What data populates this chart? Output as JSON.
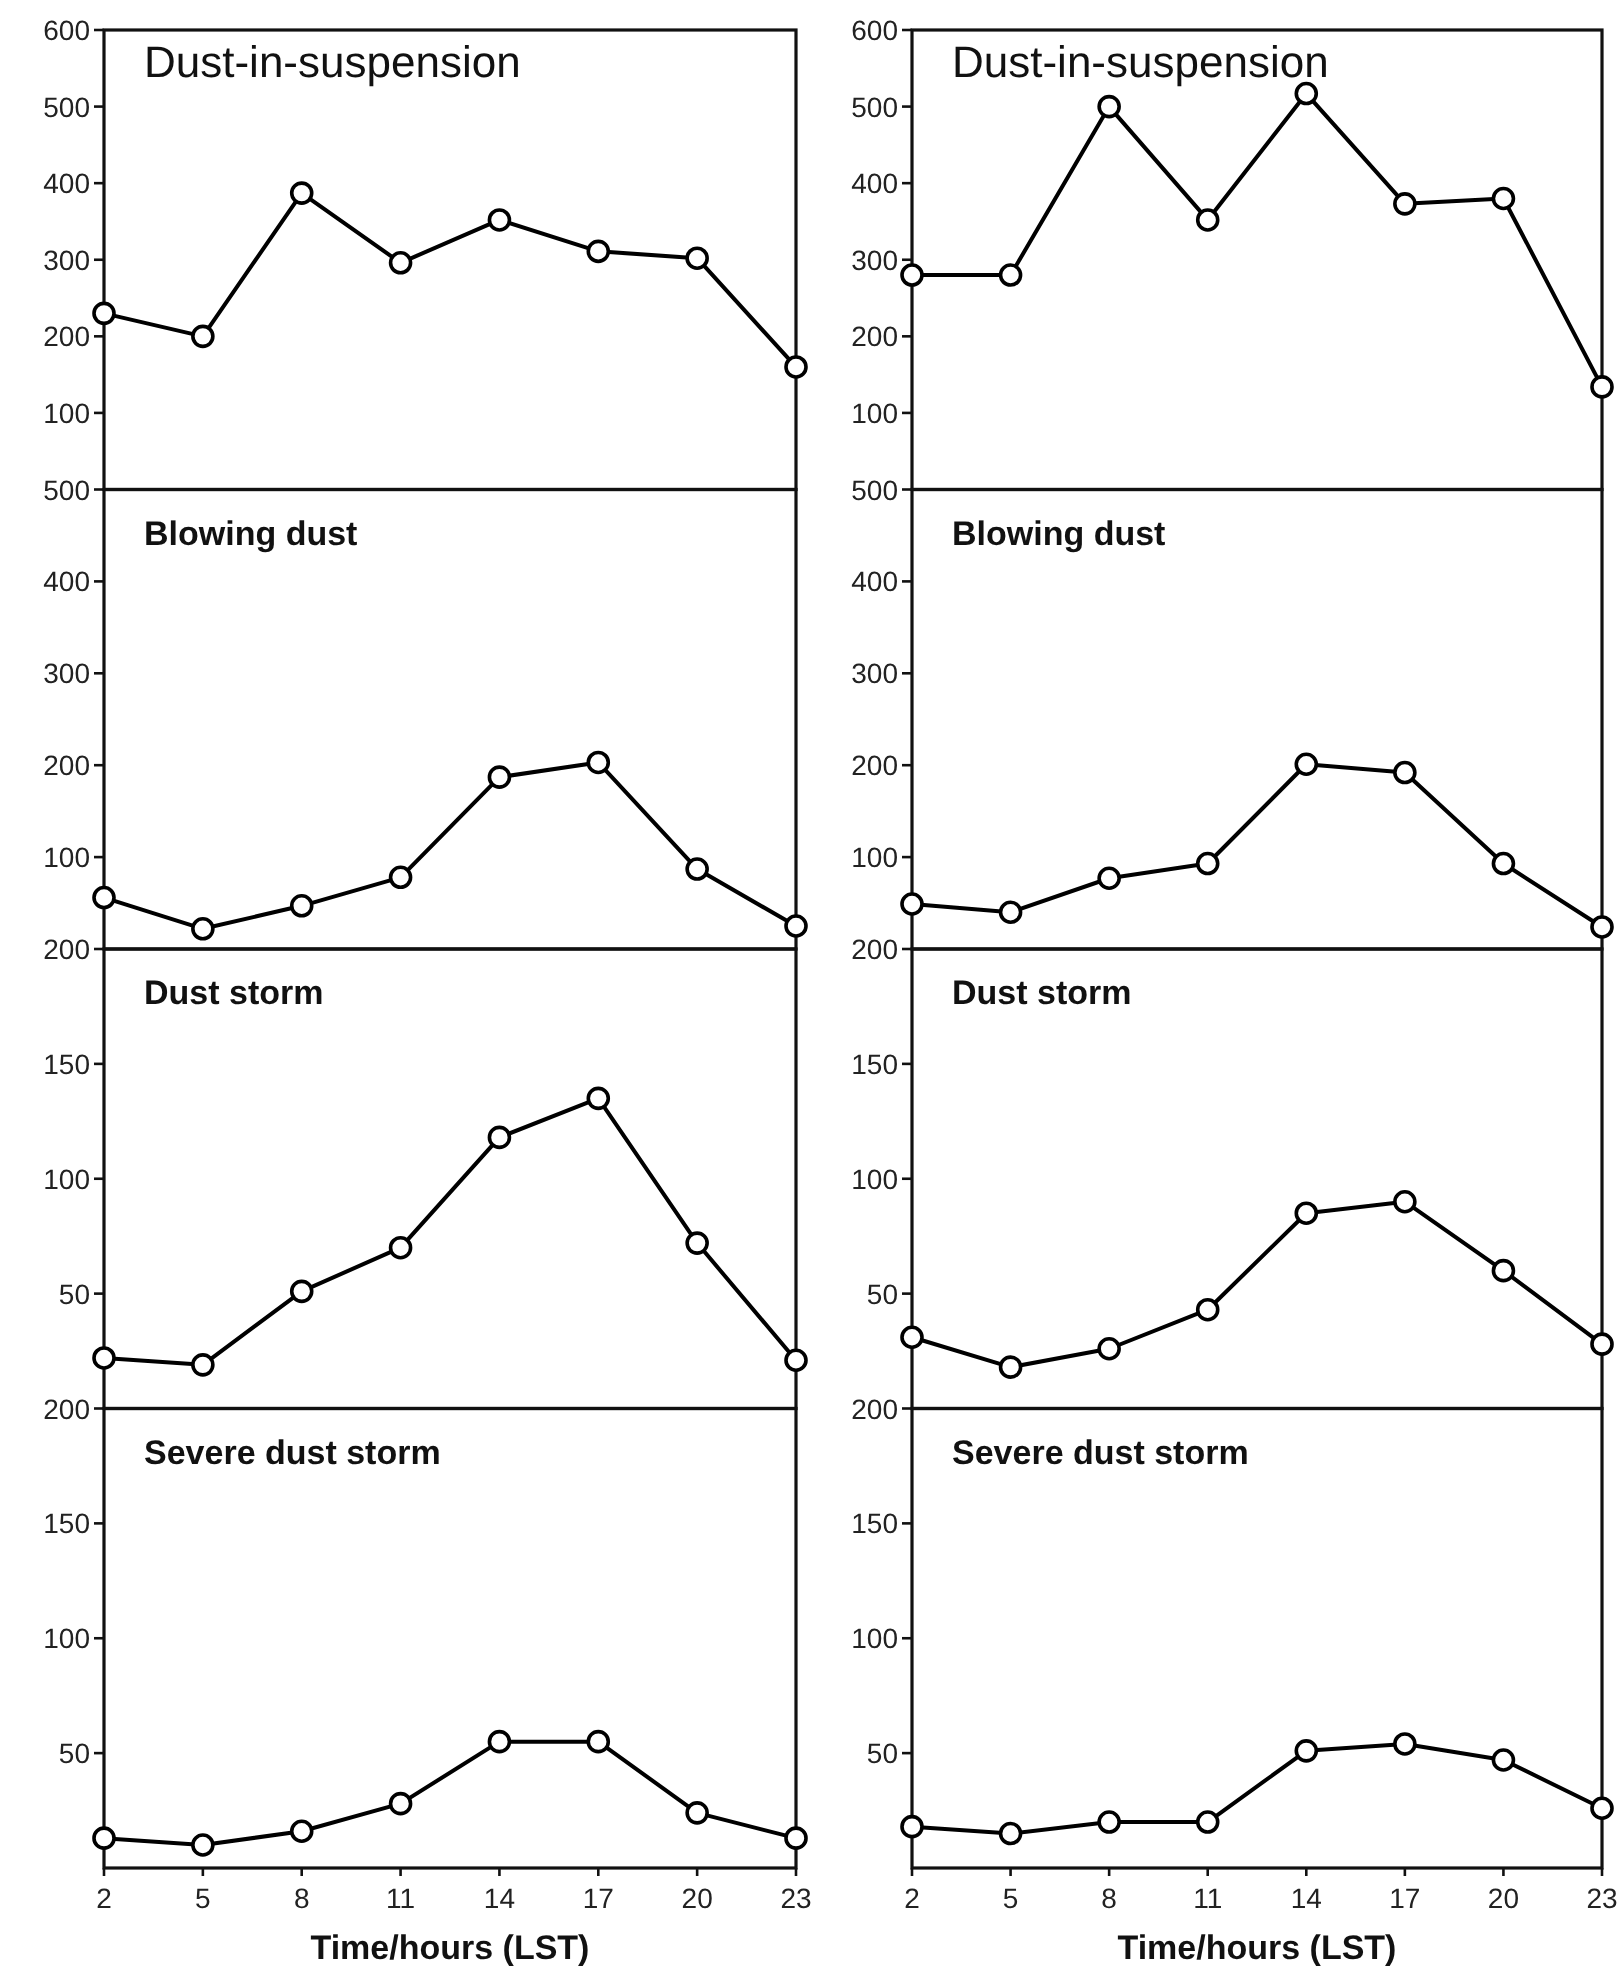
{
  "chart_data": [
    {
      "type": "line",
      "title": "Dust-in-suspension",
      "x": [
        2,
        5,
        8,
        11,
        14,
        17,
        20,
        23
      ],
      "values": [
        230,
        200,
        387,
        296,
        352,
        311,
        302,
        160
      ],
      "color": "#000000",
      "marker": "circle",
      "xlim": [
        2,
        23
      ],
      "ylim": [
        0,
        600
      ],
      "yticks": [
        100,
        200,
        300,
        400,
        500,
        600
      ],
      "tick_labels": "y"
    },
    {
      "type": "line",
      "title": "Dust-in-suspension",
      "x": [
        2,
        5,
        8,
        11,
        14,
        17,
        20,
        23
      ],
      "values": [
        280,
        280,
        500,
        352,
        517,
        373,
        380,
        134
      ],
      "color": "#000000",
      "marker": "circle",
      "xlim": [
        2,
        23
      ],
      "ylim": [
        0,
        600
      ],
      "yticks": [
        100,
        200,
        300,
        400,
        500,
        600
      ],
      "tick_labels": "y"
    },
    {
      "type": "line",
      "title": "Blowing dust",
      "x": [
        2,
        5,
        8,
        11,
        14,
        17,
        20,
        23
      ],
      "values": [
        56,
        22,
        47,
        78,
        187,
        203,
        87,
        25
      ],
      "color": "#000000",
      "marker": "circle",
      "xlim": [
        2,
        23
      ],
      "ylim": [
        0,
        500
      ],
      "yticks": [
        100,
        200,
        300,
        400,
        500
      ],
      "tick_labels": "y"
    },
    {
      "type": "line",
      "title": "Blowing dust",
      "x": [
        2,
        5,
        8,
        11,
        14,
        17,
        20,
        23
      ],
      "values": [
        49,
        40,
        77,
        93,
        201,
        192,
        93,
        24
      ],
      "color": "#000000",
      "marker": "circle",
      "xlim": [
        2,
        23
      ],
      "ylim": [
        0,
        500
      ],
      "yticks": [
        100,
        200,
        300,
        400,
        500
      ],
      "tick_labels": "y"
    },
    {
      "type": "line",
      "title": "Dust storm",
      "x": [
        2,
        5,
        8,
        11,
        14,
        17,
        20,
        23
      ],
      "values": [
        22,
        19,
        51,
        70,
        118,
        135,
        72,
        21
      ],
      "color": "#000000",
      "marker": "circle",
      "xlim": [
        2,
        23
      ],
      "ylim": [
        0,
        200
      ],
      "yticks": [
        50,
        100,
        150,
        200
      ],
      "tick_labels": "y"
    },
    {
      "type": "line",
      "title": "Dust storm",
      "x": [
        2,
        5,
        8,
        11,
        14,
        17,
        20,
        23
      ],
      "values": [
        31,
        18,
        26,
        43,
        85,
        90,
        60,
        28
      ],
      "color": "#000000",
      "marker": "circle",
      "xlim": [
        2,
        23
      ],
      "ylim": [
        0,
        200
      ],
      "yticks": [
        50,
        100,
        150,
        200
      ],
      "tick_labels": "y"
    },
    {
      "type": "line",
      "title": "Severe dust storm",
      "xlabel": "Time/hours (LST)",
      "x": [
        2,
        5,
        8,
        11,
        14,
        17,
        20,
        23
      ],
      "values": [
        13,
        10,
        16,
        28,
        55,
        55,
        24,
        13
      ],
      "color": "#000000",
      "marker": "circle",
      "xlim": [
        2,
        23
      ],
      "xticks": [
        2,
        5,
        8,
        11,
        14,
        17,
        20,
        23
      ],
      "ylim": [
        0,
        200
      ],
      "yticks": [
        50,
        100,
        150,
        200
      ]
    },
    {
      "type": "line",
      "title": "Severe dust storm",
      "xlabel": "Time/hours (LST)",
      "x": [
        2,
        5,
        8,
        11,
        14,
        17,
        20,
        23
      ],
      "values": [
        18,
        15,
        20,
        20,
        51,
        54,
        47,
        26
      ],
      "color": "#000000",
      "marker": "circle",
      "xlim": [
        2,
        23
      ],
      "xticks": [
        2,
        5,
        8,
        11,
        14,
        17,
        20,
        23
      ],
      "ylim": [
        0,
        200
      ],
      "yticks": [
        50,
        100,
        150,
        200
      ]
    }
  ]
}
